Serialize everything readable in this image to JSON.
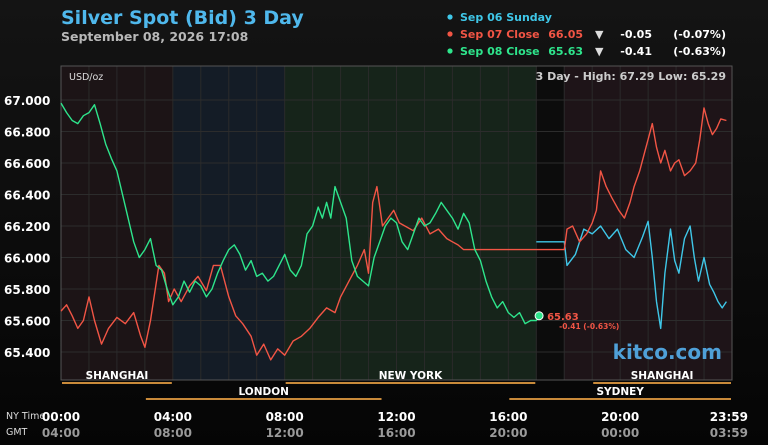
{
  "header": {
    "title": "Silver Spot (Bid) 3 Day",
    "subtitle": "September 08, 2026 17:08"
  },
  "legend": [
    {
      "label": "Sep 06 Sunday",
      "color": "#3fc7e8",
      "price": "",
      "arrow": "",
      "change": "",
      "pct": ""
    },
    {
      "label": "Sep 07 Close",
      "color": "#f25545",
      "price": "66.05",
      "arrow": "▼",
      "change": "-0.05",
      "pct": "(-0.07%)"
    },
    {
      "label": "Sep 08 Close",
      "color": "#2ee58c",
      "price": "65.63",
      "arrow": "▼",
      "change": "-0.41",
      "pct": "(-0.63%)"
    }
  ],
  "plot": {
    "unit_label": "USD/oz",
    "stats": "3 Day - High: 67.29  Low: 65.29",
    "watermark": "kitco.com",
    "last_price": "65.63",
    "last_change": "-0.41 (-0.63%)"
  },
  "markets": [
    {
      "name": "SHANGHAI",
      "start": 0,
      "end": 4
    },
    {
      "name": "LONDON",
      "start": 3,
      "end": 11.5
    },
    {
      "name": "NEW YORK",
      "start": 8,
      "end": 17
    },
    {
      "name": "SHANGHAI",
      "start": 19,
      "end": 24
    },
    {
      "name": "SYDNEY",
      "start": 16,
      "end": 24
    }
  ],
  "time_axis": {
    "row1_label": "NY Time",
    "row2_label": "GMT",
    "ny": [
      "00:00",
      "04:00",
      "08:00",
      "12:00",
      "16:00",
      "20:00",
      "23:59"
    ],
    "gmt": [
      "04:00",
      "08:00",
      "12:00",
      "16:00",
      "20:00",
      "00:00",
      "03:59"
    ]
  },
  "chart_data": {
    "type": "line",
    "title": "Silver Spot (Bid) 3 Day",
    "ylabel": "USD/oz",
    "ylim": [
      65.29,
      67.05
    ],
    "xlim": [
      0,
      24
    ],
    "y_ticks": [
      "67.000",
      "66.800",
      "66.600",
      "66.400",
      "66.200",
      "66.000",
      "65.800",
      "65.600",
      "65.400"
    ],
    "x_ticks_ny": [
      "00:00",
      "04:00",
      "08:00",
      "12:00",
      "16:00",
      "20:00",
      "23:59"
    ],
    "x_ticks_gmt": [
      "04:00",
      "08:00",
      "12:00",
      "16:00",
      "20:00",
      "00:00",
      "03:59"
    ],
    "series": [
      {
        "name": "Sep 06 Sunday",
        "color": "#3fc7e8",
        "points": [
          [
            17,
            66.1
          ],
          [
            18,
            66.1
          ],
          [
            18.1,
            65.95
          ],
          [
            18.4,
            66.02
          ],
          [
            18.7,
            66.18
          ],
          [
            19.0,
            66.15
          ],
          [
            19.3,
            66.2
          ],
          [
            19.6,
            66.12
          ],
          [
            19.9,
            66.18
          ],
          [
            20.2,
            66.05
          ],
          [
            20.5,
            66.0
          ],
          [
            20.8,
            66.13
          ],
          [
            21.0,
            66.23
          ],
          [
            21.15,
            66.0
          ],
          [
            21.3,
            65.72
          ],
          [
            21.45,
            65.55
          ],
          [
            21.6,
            65.9
          ],
          [
            21.8,
            66.18
          ],
          [
            21.95,
            65.98
          ],
          [
            22.1,
            65.9
          ],
          [
            22.3,
            66.12
          ],
          [
            22.5,
            66.2
          ],
          [
            22.65,
            66.0
          ],
          [
            22.8,
            65.85
          ],
          [
            23.0,
            66.0
          ],
          [
            23.2,
            65.83
          ],
          [
            23.35,
            65.78
          ],
          [
            23.5,
            65.72
          ],
          [
            23.65,
            65.68
          ],
          [
            23.8,
            65.72
          ]
        ]
      },
      {
        "name": "Sep 07 Close",
        "color": "#f25545",
        "points": [
          [
            0,
            65.66
          ],
          [
            0.2,
            65.7
          ],
          [
            0.4,
            65.63
          ],
          [
            0.6,
            65.55
          ],
          [
            0.8,
            65.6
          ],
          [
            1.0,
            65.75
          ],
          [
            1.2,
            65.6
          ],
          [
            1.45,
            65.45
          ],
          [
            1.7,
            65.55
          ],
          [
            2.0,
            65.62
          ],
          [
            2.3,
            65.58
          ],
          [
            2.6,
            65.65
          ],
          [
            2.85,
            65.5
          ],
          [
            3.0,
            65.43
          ],
          [
            3.2,
            65.6
          ],
          [
            3.5,
            65.95
          ],
          [
            3.7,
            65.9
          ],
          [
            3.85,
            65.72
          ],
          [
            4.05,
            65.8
          ],
          [
            4.3,
            65.72
          ],
          [
            4.6,
            65.82
          ],
          [
            4.9,
            65.88
          ],
          [
            5.2,
            65.79
          ],
          [
            5.45,
            65.95
          ],
          [
            5.7,
            65.95
          ],
          [
            6.0,
            65.75
          ],
          [
            6.25,
            65.63
          ],
          [
            6.5,
            65.58
          ],
          [
            6.8,
            65.5
          ],
          [
            7.0,
            65.38
          ],
          [
            7.25,
            65.45
          ],
          [
            7.5,
            65.35
          ],
          [
            7.75,
            65.42
          ],
          [
            8.0,
            65.38
          ],
          [
            8.3,
            65.47
          ],
          [
            8.6,
            65.5
          ],
          [
            8.9,
            65.55
          ],
          [
            9.2,
            65.62
          ],
          [
            9.5,
            65.68
          ],
          [
            9.8,
            65.65
          ],
          [
            10.0,
            65.75
          ],
          [
            10.3,
            65.85
          ],
          [
            10.6,
            65.95
          ],
          [
            10.85,
            66.05
          ],
          [
            11.0,
            65.9
          ],
          [
            11.15,
            66.35
          ],
          [
            11.3,
            66.45
          ],
          [
            11.5,
            66.2
          ],
          [
            11.7,
            66.25
          ],
          [
            11.9,
            66.3
          ],
          [
            12.1,
            66.22
          ],
          [
            12.3,
            66.2
          ],
          [
            12.6,
            66.17
          ],
          [
            12.9,
            66.25
          ],
          [
            13.2,
            66.15
          ],
          [
            13.5,
            66.18
          ],
          [
            13.8,
            66.12
          ],
          [
            14.0,
            66.1
          ],
          [
            14.2,
            66.08
          ],
          [
            14.4,
            66.05
          ],
          [
            14.6,
            66.05
          ],
          [
            15.5,
            66.05
          ],
          [
            16.0,
            66.05
          ],
          [
            17.0,
            66.05
          ],
          [
            18.0,
            66.05
          ],
          [
            18.1,
            66.18
          ],
          [
            18.3,
            66.2
          ],
          [
            18.55,
            66.1
          ],
          [
            18.8,
            66.15
          ],
          [
            19.0,
            66.22
          ],
          [
            19.15,
            66.3
          ],
          [
            19.3,
            66.55
          ],
          [
            19.5,
            66.45
          ],
          [
            19.7,
            66.38
          ],
          [
            19.95,
            66.3
          ],
          [
            20.15,
            66.25
          ],
          [
            20.35,
            66.35
          ],
          [
            20.5,
            66.45
          ],
          [
            20.7,
            66.55
          ],
          [
            20.85,
            66.65
          ],
          [
            21.0,
            66.75
          ],
          [
            21.15,
            66.85
          ],
          [
            21.3,
            66.7
          ],
          [
            21.45,
            66.6
          ],
          [
            21.6,
            66.68
          ],
          [
            21.8,
            66.55
          ],
          [
            21.95,
            66.6
          ],
          [
            22.1,
            66.62
          ],
          [
            22.3,
            66.52
          ],
          [
            22.5,
            66.55
          ],
          [
            22.7,
            66.6
          ],
          [
            22.85,
            66.75
          ],
          [
            23.0,
            66.95
          ],
          [
            23.15,
            66.85
          ],
          [
            23.3,
            66.78
          ],
          [
            23.45,
            66.82
          ],
          [
            23.6,
            66.88
          ],
          [
            23.8,
            66.87
          ]
        ]
      },
      {
        "name": "Sep 08 Close",
        "color": "#2ee58c",
        "points": [
          [
            0,
            66.98
          ],
          [
            0.2,
            66.92
          ],
          [
            0.4,
            66.87
          ],
          [
            0.6,
            66.85
          ],
          [
            0.8,
            66.9
          ],
          [
            1.0,
            66.92
          ],
          [
            1.2,
            66.97
          ],
          [
            1.4,
            66.85
          ],
          [
            1.6,
            66.72
          ],
          [
            1.8,
            66.63
          ],
          [
            2.0,
            66.55
          ],
          [
            2.2,
            66.4
          ],
          [
            2.4,
            66.25
          ],
          [
            2.6,
            66.1
          ],
          [
            2.8,
            66.0
          ],
          [
            3.0,
            66.05
          ],
          [
            3.2,
            66.12
          ],
          [
            3.4,
            65.95
          ],
          [
            3.6,
            65.92
          ],
          [
            3.8,
            65.8
          ],
          [
            4.0,
            65.7
          ],
          [
            4.2,
            65.75
          ],
          [
            4.4,
            65.85
          ],
          [
            4.6,
            65.78
          ],
          [
            4.8,
            65.85
          ],
          [
            5.0,
            65.82
          ],
          [
            5.2,
            65.75
          ],
          [
            5.4,
            65.8
          ],
          [
            5.6,
            65.9
          ],
          [
            5.8,
            65.98
          ],
          [
            6.0,
            66.05
          ],
          [
            6.2,
            66.08
          ],
          [
            6.4,
            66.02
          ],
          [
            6.6,
            65.92
          ],
          [
            6.8,
            65.98
          ],
          [
            7.0,
            65.88
          ],
          [
            7.2,
            65.9
          ],
          [
            7.4,
            65.85
          ],
          [
            7.6,
            65.88
          ],
          [
            7.8,
            65.95
          ],
          [
            8.0,
            66.02
          ],
          [
            8.2,
            65.92
          ],
          [
            8.4,
            65.88
          ],
          [
            8.6,
            65.95
          ],
          [
            8.8,
            66.15
          ],
          [
            9.0,
            66.2
          ],
          [
            9.2,
            66.32
          ],
          [
            9.35,
            66.25
          ],
          [
            9.5,
            66.35
          ],
          [
            9.65,
            66.25
          ],
          [
            9.8,
            66.45
          ],
          [
            10.0,
            66.35
          ],
          [
            10.2,
            66.25
          ],
          [
            10.4,
            65.98
          ],
          [
            10.6,
            65.88
          ],
          [
            10.8,
            65.85
          ],
          [
            11.0,
            65.82
          ],
          [
            11.2,
            66.0
          ],
          [
            11.4,
            66.1
          ],
          [
            11.6,
            66.2
          ],
          [
            11.8,
            66.25
          ],
          [
            12.0,
            66.22
          ],
          [
            12.2,
            66.1
          ],
          [
            12.4,
            66.05
          ],
          [
            12.6,
            66.15
          ],
          [
            12.8,
            66.25
          ],
          [
            13.0,
            66.2
          ],
          [
            13.2,
            66.22
          ],
          [
            13.4,
            66.28
          ],
          [
            13.6,
            66.35
          ],
          [
            13.8,
            66.3
          ],
          [
            14.0,
            66.25
          ],
          [
            14.2,
            66.18
          ],
          [
            14.4,
            66.28
          ],
          [
            14.6,
            66.22
          ],
          [
            14.8,
            66.05
          ],
          [
            15.0,
            65.98
          ],
          [
            15.2,
            65.85
          ],
          [
            15.4,
            65.75
          ],
          [
            15.6,
            65.68
          ],
          [
            15.8,
            65.72
          ],
          [
            16.0,
            65.65
          ],
          [
            16.2,
            65.62
          ],
          [
            16.4,
            65.65
          ],
          [
            16.6,
            65.58
          ],
          [
            16.8,
            65.6
          ],
          [
            17.0,
            65.6
          ],
          [
            17.1,
            65.63
          ]
        ]
      }
    ],
    "annotations": [
      "65.63",
      "-0.41 (-0.63%)"
    ]
  }
}
